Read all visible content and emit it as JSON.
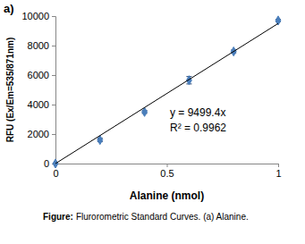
{
  "chart_data": {
    "type": "scatter",
    "panel_label": "a)",
    "x_label": "Alanine (nmol)",
    "y_label": "RFU (Ex/Em=535/871nm)",
    "xlim": [
      0,
      1
    ],
    "xticks": [
      0,
      0.5,
      1
    ],
    "ylim": [
      0,
      10000
    ],
    "yticks": [
      0,
      2000,
      4000,
      6000,
      8000,
      10000
    ],
    "grid": false,
    "series": [
      {
        "type": "scatter",
        "marker": "diamond",
        "color": "#4a7ebb",
        "x": [
          0,
          0.2,
          0.4,
          0.6,
          0.8,
          1
        ],
        "values": [
          0,
          1600,
          3500,
          5650,
          7600,
          9700
        ],
        "errors": [
          0,
          120,
          100,
          250,
          100,
          80
        ]
      },
      {
        "type": "line",
        "line_style": "solid",
        "color": "#000000",
        "x": [
          0,
          1
        ],
        "values": [
          0,
          9499.4
        ]
      }
    ],
    "annotations": [
      "y = 9499.4x",
      "R² = 0.9962"
    ],
    "caption": {
      "label": "Figure:",
      "text": "Flurorometric Standard Curves. (a) Alanine."
    }
  }
}
